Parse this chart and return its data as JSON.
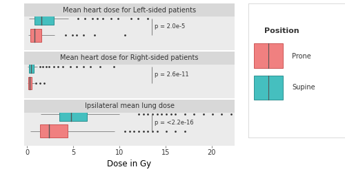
{
  "panels": [
    {
      "title": "Mean heart dose for Left-sided patients",
      "p_value": "p = 2.0e-5",
      "supine": {
        "whisker_low": 0.2,
        "q1": 0.8,
        "median": 1.6,
        "q3": 2.9,
        "whisker_high": 4.5,
        "outliers": [
          5.5,
          6.3,
          7.1,
          7.6,
          8.2,
          9.1,
          9.9,
          11.3,
          12.0,
          13.1
        ]
      },
      "prone": {
        "whisker_low": 0.15,
        "q1": 0.4,
        "median": 0.8,
        "q3": 1.6,
        "whisker_high": 3.0,
        "outliers": [
          4.2,
          4.9,
          5.4,
          6.1,
          7.3,
          10.6
        ]
      }
    },
    {
      "title": "Mean heart dose for Right-sided patients",
      "p_value": "p = 2.6e-11",
      "supine": {
        "whisker_low": 0.1,
        "q1": 0.25,
        "median": 0.45,
        "q3": 0.75,
        "whisker_high": 1.1,
        "outliers": [
          1.4,
          1.7,
          2.1,
          2.4,
          2.9,
          3.4,
          3.9,
          4.7,
          5.4,
          6.1,
          6.9,
          7.9,
          9.4
        ]
      },
      "prone": {
        "whisker_low": 0.05,
        "q1": 0.15,
        "median": 0.3,
        "q3": 0.55,
        "whisker_high": 0.8,
        "outliers": [
          1.0,
          1.4,
          1.9
        ]
      }
    },
    {
      "title": "Ipsilateral mean lung dose",
      "p_value": "p = <2.2e-16",
      "supine": {
        "whisker_low": 1.5,
        "q1": 3.5,
        "median": 4.8,
        "q3": 6.5,
        "whisker_high": 10.0,
        "outliers": [
          12.1,
          12.6,
          13.1,
          13.6,
          14.1,
          14.6,
          15.1,
          15.6,
          16.1,
          17.1,
          18.1,
          19.1,
          20.1,
          21.1,
          22.1
        ]
      },
      "prone": {
        "whisker_low": 0.4,
        "q1": 1.4,
        "median": 2.4,
        "q3": 4.4,
        "whisker_high": 9.5,
        "outliers": [
          10.6,
          11.1,
          11.6,
          12.1,
          12.6,
          13.1,
          13.6,
          14.1,
          15.1,
          16.1,
          17.1
        ]
      }
    }
  ],
  "prone_color": "#F08080",
  "supine_color": "#45BFBF",
  "prone_edge_color": "#CC5555",
  "supine_edge_color": "#2A9090",
  "median_color": "#555555",
  "whisker_color": "#888888",
  "bg_panel": "#EBEBEB",
  "bg_title": "#D8D8D8",
  "xlabel": "Dose in Gy",
  "legend_title": "Position",
  "legend_prone": "Prone",
  "legend_supine": "Supine",
  "xlim": [
    -0.3,
    22.5
  ],
  "xticks": [
    0,
    5,
    10,
    15,
    20
  ],
  "figsize": [
    5.0,
    2.56
  ],
  "dpi": 100
}
